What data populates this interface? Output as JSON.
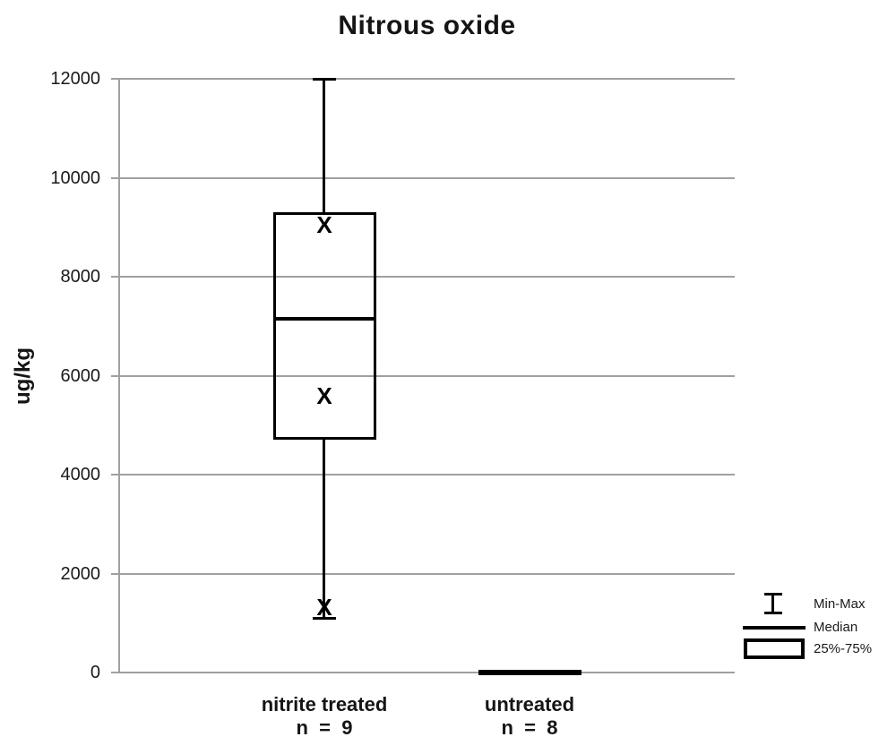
{
  "title": "Nitrous oxide",
  "y_axis": {
    "label": "ug/kg",
    "ticks": [
      0,
      2000,
      4000,
      6000,
      8000,
      10000,
      12000
    ]
  },
  "legend": {
    "items": [
      {
        "icon": "minmax-whisker-icon",
        "label": "Min-Max"
      },
      {
        "icon": "median-line-icon",
        "label": "Median"
      },
      {
        "icon": "iqr-box-icon",
        "label": "25%-75%"
      }
    ]
  },
  "chart_data": {
    "type": "boxplot",
    "title": "Nitrous oxide",
    "ylabel": "ug/kg",
    "ylim": [
      0,
      12000
    ],
    "ytick_interval": 2000,
    "grid": true,
    "legend_position": "right-bottom",
    "marker_glyph": "X",
    "groups": [
      {
        "label": "nitrite treated",
        "n_label": "n  =  9",
        "n": 9,
        "min": 1100,
        "q1": 4700,
        "median": 7150,
        "q3": 9300,
        "max": 12000,
        "x_markers": [
          9050,
          5600,
          1330
        ]
      },
      {
        "label": "untreated",
        "n_label": "n  =  8",
        "n": 8,
        "min": 0,
        "q1": 0,
        "median": 0,
        "q3": 0,
        "max": 0,
        "x_markers": []
      }
    ]
  },
  "colors": {
    "ink": "#000000",
    "grid": "#a0a0a0",
    "background": "#ffffff"
  }
}
